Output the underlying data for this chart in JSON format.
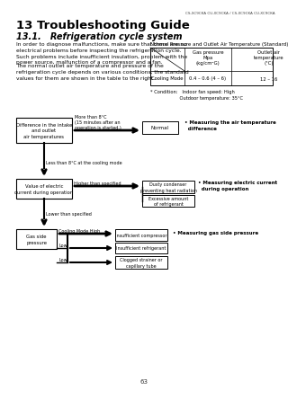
{
  "header_text": "CS-XC9CKA CU-XC9CKA / CS-XC9CKA CU-XC9CKA",
  "title": "13 Troubleshooting Guide",
  "subtitle": "13.1.   Refrigeration cycle system",
  "body_text1": "In order to diagnose malfunctions, make sure that there are no\nelectrical problems before inspecting the refrigeration cycle.\nSuch problems include insufficient insulation, problem with the\npower source, malfunction of a compressor and a fan.",
  "body_text2": "The normal outlet air temperature and pressure of the\nrefrigeration cycle depends on various conditions, the standard\nvalues for them are shown in the table to the right.",
  "table_title": "Normal Pressure and Outlet Air Temperature (Standard)",
  "table_col1": "Gas pressure\nMpa\n(kg/cm²G)",
  "table_col2": "Outlet air\ntemperature\n(°C)",
  "table_row_label": "Cooling Mode",
  "table_val1": "0.4 – 0.6 (4 – 6)",
  "table_val2": "12 – 16",
  "condition_text": "* Condition:   Indoor fan speed: High\n                    Outdoor temperature: 35°C",
  "page_number": "63",
  "box1_text": "Difference in the intake\nand outlet\nair temperatures",
  "arrow1_label": "More than 8°C\n(15 minutes after an\noperation is started.)",
  "box_normal": "Normal",
  "bullet1": "• Measuring the air temperature\n  difference",
  "arrow2_label": "Less than 8°C at the cooling mode",
  "box2_text": "Value of electric\ncurrent during operation",
  "arrow3_label": "Higher than specified",
  "box3a_text": "Dusty condenser\npreventing heat radiation",
  "box3b_text": "Excessive amount\nof refrigerant",
  "bullet2": "• Measuring electric current\n  during operation",
  "arrow4_label": "Lower than specified",
  "box4_text": "Gas side\npressure",
  "arrow5_label": "Cooling Mode High",
  "arrow5a_label": "Low",
  "arrow5b_label": "Low",
  "box5a_text": "Insufficient compressor",
  "box5b_text": "Insufficient refrigerant",
  "box5c_text": "Clogged strainer or\ncapillary tube",
  "bullet3": "• Measuring gas side pressure",
  "bg_color": "#ffffff",
  "text_color": "#000000"
}
